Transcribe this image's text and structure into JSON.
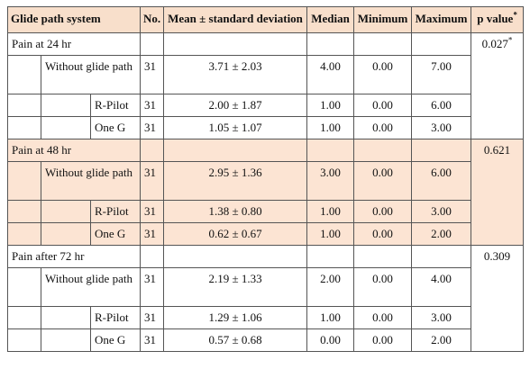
{
  "table": {
    "header": [
      "Glide path system",
      "No.",
      "Mean ± standard deviation",
      "Median",
      "Minimum",
      "Maximum",
      {
        "text": "p value",
        "sup": "*"
      }
    ],
    "groups": [
      {
        "label": "Pain at 24 hr",
        "p_value": {
          "text": "0.027",
          "sup": "*"
        },
        "shaded": false,
        "rows": [
          {
            "label": "Without glide path",
            "n": 31,
            "mean_sd": "3.71 ± 2.03",
            "median": "4.00",
            "minimum": "0.00",
            "maximum": "7.00"
          },
          {
            "label": "R-Pilot",
            "n": 31,
            "mean_sd": "2.00 ± 1.87",
            "median": "1.00",
            "minimum": "0.00",
            "maximum": "6.00"
          },
          {
            "label": "One G",
            "n": 31,
            "mean_sd": "1.05 ± 1.07",
            "median": "1.00",
            "minimum": "0.00",
            "maximum": "3.00"
          }
        ]
      },
      {
        "label": "Pain at 48 hr",
        "p_value": {
          "text": "0.621"
        },
        "shaded": true,
        "rows": [
          {
            "label": "Without glide path",
            "n": 31,
            "mean_sd": "2.95 ± 1.36",
            "median": "3.00",
            "minimum": "0.00",
            "maximum": "6.00"
          },
          {
            "label": "R-Pilot",
            "n": 31,
            "mean_sd": "1.38 ± 0.80",
            "median": "1.00",
            "minimum": "0.00",
            "maximum": "3.00"
          },
          {
            "label": "One G",
            "n": 31,
            "mean_sd": "0.62 ± 0.67",
            "median": "1.00",
            "minimum": "0.00",
            "maximum": "2.00"
          }
        ]
      },
      {
        "label": "Pain after 72 hr",
        "p_value": {
          "text": "0.309"
        },
        "shaded": false,
        "rows": [
          {
            "label": "Without glide path",
            "n": 31,
            "mean_sd": "2.19 ± 1.33",
            "median": "2.00",
            "minimum": "0.00",
            "maximum": "4.00"
          },
          {
            "label": "R-Pilot",
            "n": 31,
            "mean_sd": "1.29 ± 1.06",
            "median": "1.00",
            "minimum": "0.00",
            "maximum": "3.00"
          },
          {
            "label": "One G",
            "n": 31,
            "mean_sd": "0.57 ± 0.68",
            "median": "0.00",
            "minimum": "0.00",
            "maximum": "2.00"
          }
        ]
      }
    ]
  }
}
